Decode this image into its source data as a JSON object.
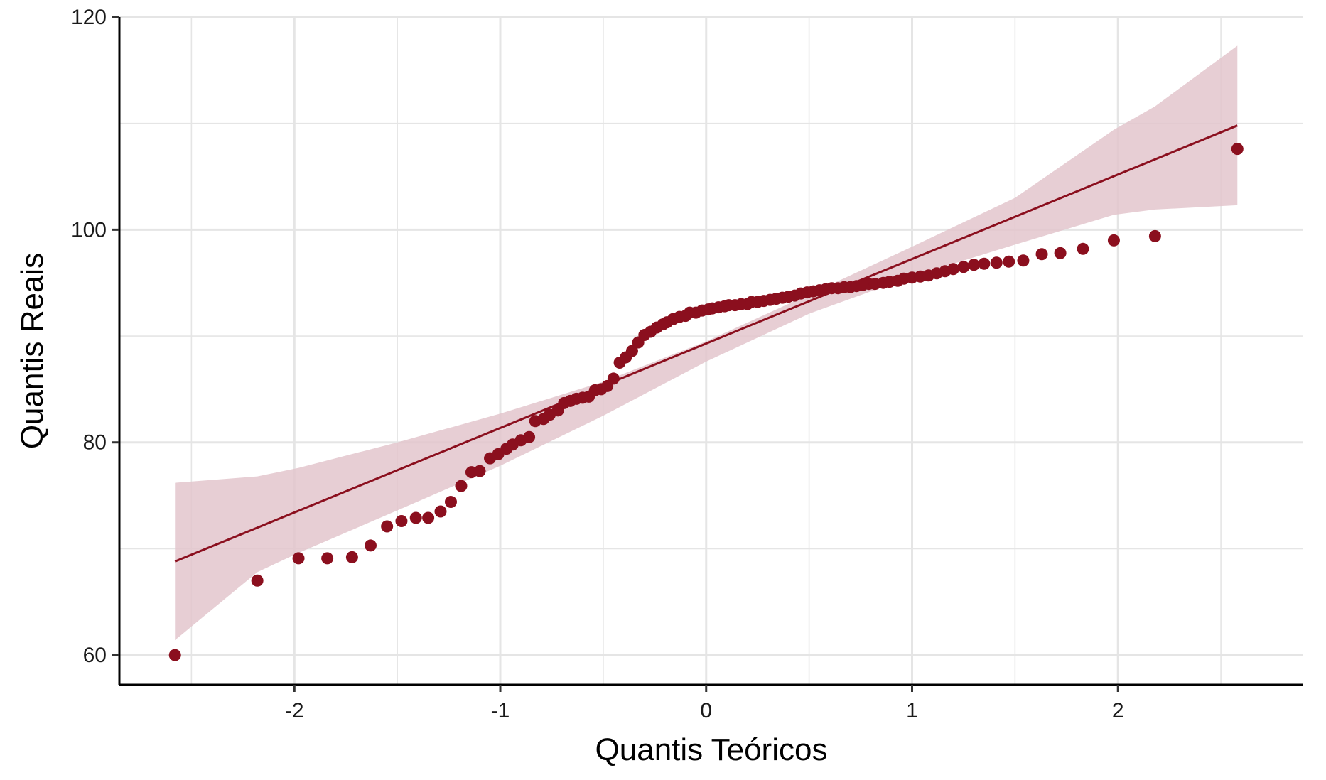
{
  "chart_data": {
    "type": "scatter",
    "title": "",
    "xlabel": "Quantis Teóricos",
    "ylabel": "Quantis Reais",
    "xlim": [
      -2.85,
      2.9
    ],
    "ylim": [
      57.2,
      120
    ],
    "x_ticks": [
      -2,
      -1,
      0,
      1,
      2
    ],
    "x_tick_labels": [
      "-2",
      "-1",
      "0",
      "1",
      "2"
    ],
    "y_ticks": [
      60,
      80,
      100,
      120
    ],
    "y_tick_labels": [
      "60",
      "80",
      "100",
      "120"
    ],
    "x_minor_gridlines": [
      -2.5,
      -1.5,
      -0.5,
      0.5,
      1.5,
      2.5
    ],
    "y_minor_gridlines": [
      70,
      90,
      110
    ],
    "grid": true,
    "legend": "none",
    "colors": {
      "points": "#8b0f1e",
      "line": "#8b0f1e",
      "band": "#e3c6cc",
      "grid": "#e5e5e5",
      "axis": "#000000"
    },
    "series": [
      {
        "type": "scatter",
        "x": [
          -2.58,
          -2.18,
          -1.98,
          -1.84,
          -1.72,
          -1.63,
          -1.55,
          -1.48,
          -1.41,
          -1.35,
          -1.29,
          -1.24,
          -1.19,
          -1.14,
          -1.1,
          -1.05,
          -1.01,
          -0.97,
          -0.94,
          -0.9,
          -0.86,
          -0.83,
          -0.79,
          -0.76,
          -0.72,
          -0.69,
          -0.66,
          -0.63,
          -0.6,
          -0.57,
          -0.54,
          -0.51,
          -0.48,
          -0.45,
          -0.42,
          -0.39,
          -0.36,
          -0.33,
          -0.3,
          -0.27,
          -0.24,
          -0.21,
          -0.19,
          -0.16,
          -0.13,
          -0.1,
          -0.08,
          -0.05,
          -0.02,
          0.01,
          0.03,
          0.06,
          0.09,
          0.11,
          0.14,
          0.17,
          0.2,
          0.22,
          0.25,
          0.28,
          0.31,
          0.34,
          0.37,
          0.4,
          0.43,
          0.46,
          0.49,
          0.52,
          0.55,
          0.58,
          0.61,
          0.64,
          0.67,
          0.7,
          0.73,
          0.76,
          0.79,
          0.82,
          0.86,
          0.89,
          0.93,
          0.96,
          1.0,
          1.04,
          1.08,
          1.12,
          1.16,
          1.2,
          1.25,
          1.3,
          1.35,
          1.41,
          1.47,
          1.54,
          1.63,
          1.72,
          1.83,
          1.98,
          2.18,
          2.58
        ],
        "y": [
          60.0,
          67.0,
          69.1,
          69.1,
          69.2,
          70.3,
          72.1,
          72.6,
          72.9,
          72.9,
          73.5,
          74.4,
          75.9,
          77.2,
          77.3,
          78.5,
          78.9,
          79.4,
          79.8,
          80.2,
          80.5,
          82.0,
          82.2,
          82.6,
          83.0,
          83.7,
          83.9,
          84.1,
          84.2,
          84.3,
          84.9,
          85.0,
          85.3,
          86.0,
          87.5,
          88.0,
          88.6,
          89.4,
          90.1,
          90.4,
          90.8,
          91.1,
          91.3,
          91.6,
          91.8,
          91.9,
          92.2,
          92.2,
          92.4,
          92.5,
          92.6,
          92.7,
          92.8,
          92.9,
          92.9,
          93.0,
          93.0,
          93.2,
          93.2,
          93.3,
          93.4,
          93.5,
          93.6,
          93.7,
          93.8,
          94.0,
          94.1,
          94.2,
          94.3,
          94.4,
          94.5,
          94.5,
          94.6,
          94.6,
          94.7,
          94.8,
          94.9,
          94.9,
          95.0,
          95.1,
          95.2,
          95.4,
          95.5,
          95.6,
          95.7,
          95.9,
          96.1,
          96.3,
          96.5,
          96.7,
          96.8,
          96.9,
          97.0,
          97.1,
          97.7,
          97.8,
          98.2,
          99.0,
          99.4,
          107.6
        ]
      }
    ],
    "reference_line": {
      "x": [
        -2.58,
        2.58
      ],
      "y": [
        68.8,
        109.8
      ]
    },
    "confidence_band": {
      "x": [
        -2.58,
        -2.18,
        -1.98,
        -1.5,
        -1.0,
        -0.5,
        0.0,
        0.5,
        1.0,
        1.5,
        1.98,
        2.18,
        2.58
      ],
      "upper": [
        76.2,
        76.8,
        77.6,
        80.0,
        82.7,
        85.7,
        89.5,
        93.9,
        98.4,
        103.0,
        109.4,
        111.6,
        117.3
      ],
      "lower": [
        61.4,
        67.8,
        69.6,
        73.6,
        77.8,
        82.5,
        87.6,
        92.1,
        95.6,
        98.6,
        101.4,
        101.9,
        102.3
      ]
    }
  }
}
